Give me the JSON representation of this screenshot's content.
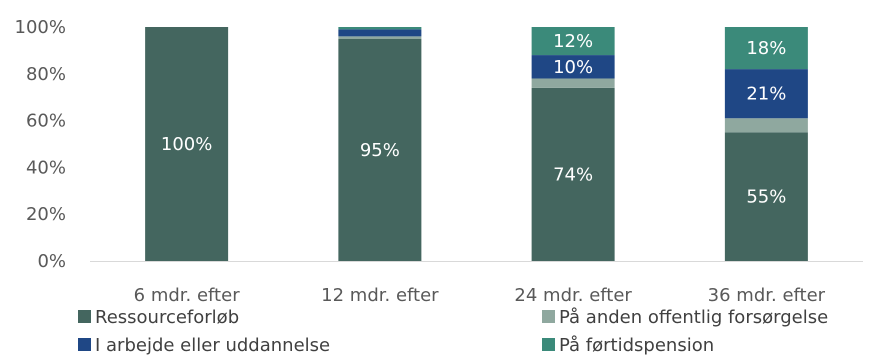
{
  "chart_data": {
    "type": "bar",
    "stacked": true,
    "categories": [
      "6 mdr. efter",
      "12 mdr. efter",
      "24 mdr. efter",
      "36 mdr. efter"
    ],
    "series": [
      {
        "name": "Ressourceforløb",
        "color": "#44665f",
        "values": [
          100,
          95,
          74,
          55
        ]
      },
      {
        "name": "På anden offentlig forsørgelse",
        "color": "#8fa89f",
        "values": [
          0,
          1,
          4,
          6
        ]
      },
      {
        "name": "I arbejde eller uddannelse",
        "color": "#1f4785",
        "values": [
          0,
          3,
          10,
          21
        ]
      },
      {
        "name": "På førtidspension",
        "color": "#3b8a7a",
        "values": [
          0,
          1,
          12,
          18
        ]
      }
    ],
    "data_labels": [
      {
        "category": 0,
        "series": 0,
        "text": "100%"
      },
      {
        "category": 1,
        "series": 0,
        "text": "95%"
      },
      {
        "category": 2,
        "series": 0,
        "text": "74%"
      },
      {
        "category": 2,
        "series": 2,
        "text": "10%"
      },
      {
        "category": 2,
        "series": 3,
        "text": "12%"
      },
      {
        "category": 3,
        "series": 0,
        "text": "55%"
      },
      {
        "category": 3,
        "series": 2,
        "text": "21%"
      },
      {
        "category": 3,
        "series": 3,
        "text": "18%"
      }
    ],
    "y_ticks": [
      "0%",
      "20%",
      "40%",
      "60%",
      "80%",
      "100%"
    ],
    "ylim": [
      0,
      100
    ],
    "grid": false,
    "legend": {
      "placement": "bottom",
      "columns": 2
    }
  }
}
